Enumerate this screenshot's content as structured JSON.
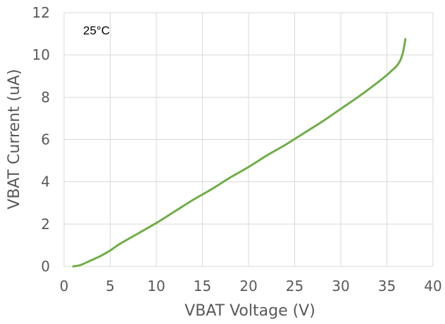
{
  "chart_data": {
    "type": "line",
    "title": "",
    "xlabel": "VBAT Voltage (V)",
    "ylabel": "VBAT Current (uA)",
    "xlim": [
      0,
      40
    ],
    "ylim": [
      0,
      12
    ],
    "x_ticks": [
      0,
      5,
      10,
      15,
      20,
      25,
      30,
      35,
      40
    ],
    "y_ticks": [
      0,
      2,
      4,
      6,
      8,
      10,
      12
    ],
    "x_tick_labels": [
      "0",
      "5",
      "10",
      "15",
      "20",
      "25",
      "30",
      "35",
      "40"
    ],
    "y_tick_labels": [
      "0",
      "2",
      "4",
      "6",
      "8",
      "10",
      "12"
    ],
    "grid": true,
    "legend": "none",
    "annotation": "25°C",
    "series": [
      {
        "color": "#70ad47",
        "x": [
          1,
          1.5,
          2,
          3,
          4,
          5,
          6,
          8,
          10,
          12,
          14,
          16,
          18,
          20,
          22,
          24,
          26,
          28,
          30,
          32,
          34,
          35,
          35.5,
          36,
          36.4,
          36.7,
          36.85,
          37
        ],
        "y": [
          0,
          0.03,
          0.1,
          0.3,
          0.5,
          0.75,
          1.05,
          1.55,
          2.05,
          2.6,
          3.15,
          3.65,
          4.2,
          4.7,
          5.25,
          5.75,
          6.3,
          6.85,
          7.45,
          8.05,
          8.7,
          9.05,
          9.25,
          9.45,
          9.7,
          10.05,
          10.35,
          10.75
        ]
      }
    ]
  }
}
